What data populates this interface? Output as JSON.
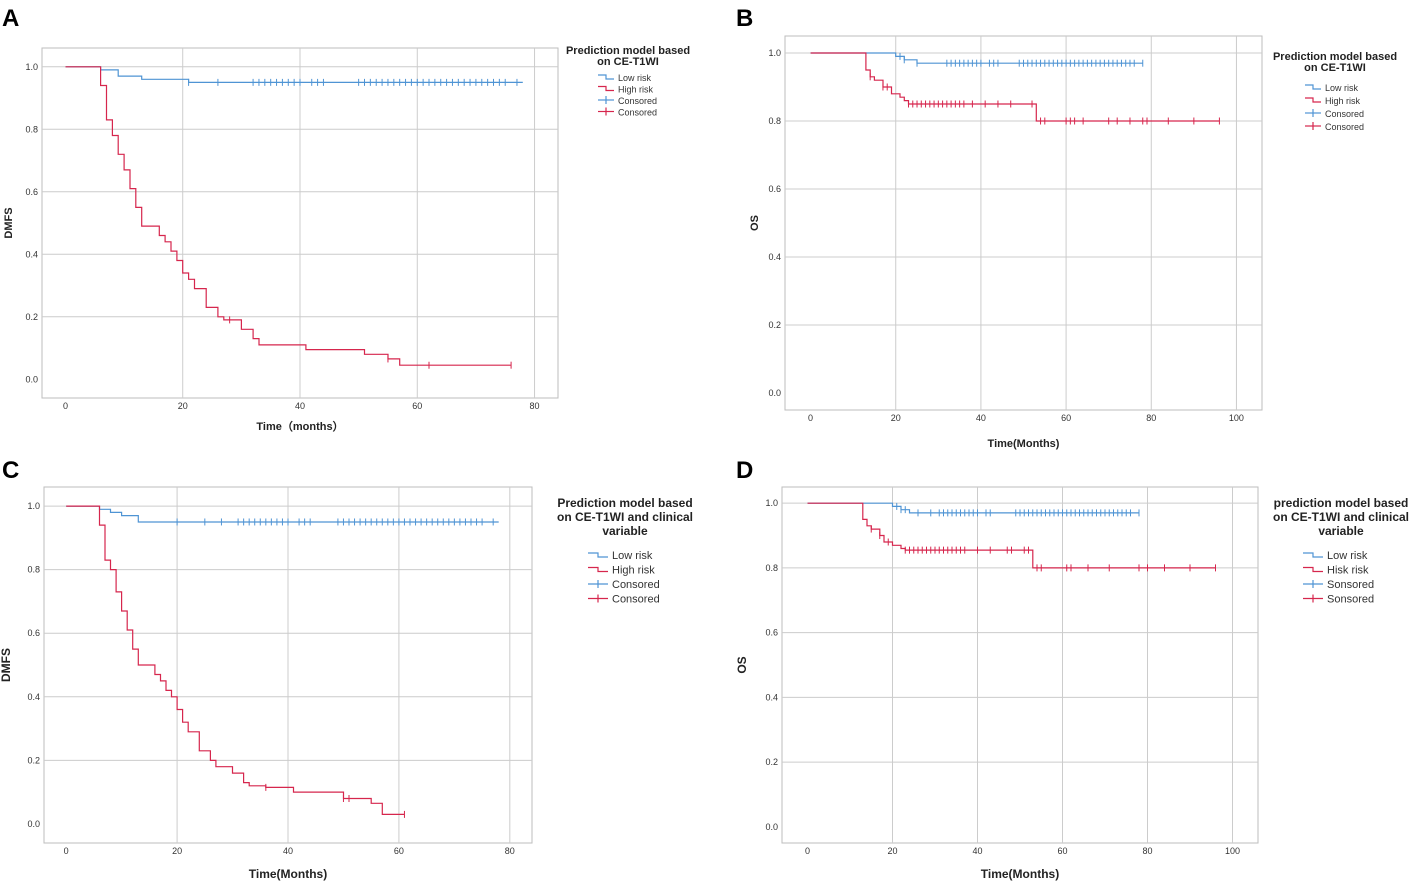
{
  "colors": {
    "low_risk": "#4f94d4",
    "high_risk": "#d6264d",
    "grid": "#cccccc",
    "frame": "#bdbdbd"
  },
  "chart_data": [
    {
      "panel": "A",
      "type": "line",
      "xlabel": "Time（months）",
      "ylabel": "DMFS",
      "xlim": [
        -4,
        84
      ],
      "ylim": [
        -0.06,
        1.06
      ],
      "xticks": [
        "0",
        "20",
        "40",
        "60",
        "80"
      ],
      "yticks": [
        "0.0",
        "0.2",
        "0.4",
        "0.6",
        "0.8",
        "1.0"
      ],
      "legend_title": [
        "Prediction model based",
        "on CE-T1WI"
      ],
      "legend": [
        "Low risk",
        "High risk",
        "Consored",
        "Consored"
      ],
      "series": [
        {
          "name": "Low risk",
          "steps": [
            [
              0,
              1.0
            ],
            [
              6,
              0.99
            ],
            [
              9,
              0.97
            ],
            [
              13,
              0.96
            ],
            [
              21,
              0.95
            ],
            [
              78,
              0.95
            ]
          ],
          "censored": [
            21,
            26,
            32,
            33,
            34,
            35,
            36,
            37,
            38,
            39,
            40,
            42,
            43,
            44,
            50,
            51,
            52,
            53,
            54,
            55,
            56,
            57,
            58,
            59,
            60,
            61,
            62,
            63,
            64,
            65,
            66,
            67,
            68,
            69,
            70,
            71,
            72,
            73,
            74,
            75,
            77
          ]
        },
        {
          "name": "High risk",
          "steps": [
            [
              0,
              1.0
            ],
            [
              6,
              0.94
            ],
            [
              7,
              0.83
            ],
            [
              8,
              0.78
            ],
            [
              9,
              0.72
            ],
            [
              10,
              0.67
            ],
            [
              11,
              0.61
            ],
            [
              12,
              0.55
            ],
            [
              13,
              0.49
            ],
            [
              16,
              0.46
            ],
            [
              17,
              0.44
            ],
            [
              18,
              0.41
            ],
            [
              19,
              0.38
            ],
            [
              20,
              0.34
            ],
            [
              21,
              0.32
            ],
            [
              22,
              0.29
            ],
            [
              24,
              0.23
            ],
            [
              26,
              0.2
            ],
            [
              27,
              0.19
            ],
            [
              30,
              0.16
            ],
            [
              32,
              0.13
            ],
            [
              33,
              0.11
            ],
            [
              41,
              0.095
            ],
            [
              51,
              0.08
            ],
            [
              55,
              0.065
            ],
            [
              57,
              0.045
            ],
            [
              76,
              0.045
            ]
          ],
          "censored": [
            28,
            55,
            62,
            76
          ]
        }
      ]
    },
    {
      "panel": "B",
      "type": "line",
      "xlabel": "Time(Months)",
      "ylabel": "OS",
      "xlim": [
        -6,
        106
      ],
      "ylim": [
        -0.05,
        1.05
      ],
      "xticks": [
        "0",
        "20",
        "40",
        "60",
        "80",
        "100"
      ],
      "yticks": [
        "0.0",
        "0.2",
        "0.4",
        "0.6",
        "0.8",
        "1.0"
      ],
      "legend_title": [
        "Prediction model based",
        "on CE-T1WI"
      ],
      "legend": [
        "Low risk",
        "High risk",
        "Consored",
        "Consored"
      ],
      "series": [
        {
          "name": "Low risk",
          "steps": [
            [
              0,
              1.0
            ],
            [
              20,
              0.99
            ],
            [
              22,
              0.98
            ],
            [
              25,
              0.97
            ],
            [
              78,
              0.97
            ]
          ],
          "censored": [
            21,
            22,
            25,
            32,
            33,
            34,
            35,
            36,
            37,
            38,
            39,
            40,
            42,
            43,
            44,
            49,
            50,
            51,
            52,
            53,
            54,
            55,
            56,
            57,
            58,
            59,
            60,
            61,
            62,
            63,
            64,
            65,
            66,
            67,
            68,
            69,
            70,
            71,
            72,
            73,
            74,
            75,
            76,
            78
          ]
        },
        {
          "name": "High risk",
          "steps": [
            [
              0,
              1.0
            ],
            [
              13,
              0.95
            ],
            [
              14,
              0.93
            ],
            [
              15,
              0.92
            ],
            [
              17,
              0.9
            ],
            [
              19,
              0.88
            ],
            [
              21,
              0.87
            ],
            [
              22,
              0.86
            ],
            [
              23,
              0.85
            ],
            [
              53,
              0.8
            ],
            [
              96,
              0.8
            ]
          ],
          "censored": [
            14,
            17,
            18,
            23,
            24,
            25,
            26,
            27,
            28,
            29,
            30,
            31,
            32,
            33,
            34,
            35,
            36,
            38,
            41,
            44,
            47,
            52,
            54,
            55,
            60,
            61,
            62,
            64,
            70,
            72,
            75,
            78,
            79,
            84,
            90,
            96
          ]
        }
      ]
    },
    {
      "panel": "C",
      "type": "line",
      "xlabel": "Time(Months)",
      "ylabel": "DMFS",
      "xlim": [
        -4,
        84
      ],
      "ylim": [
        -0.06,
        1.06
      ],
      "xticks": [
        "0",
        "20",
        "40",
        "60",
        "80"
      ],
      "yticks": [
        "0.0",
        "0.2",
        "0.4",
        "0.6",
        "0.8",
        "1.0"
      ],
      "legend_title": [
        "Prediction model based",
        "on CE-T1WI and clinical",
        "variable"
      ],
      "legend": [
        "Low risk",
        "High risk",
        "Consored",
        "Consored"
      ],
      "series": [
        {
          "name": "Low risk",
          "steps": [
            [
              0,
              1.0
            ],
            [
              6,
              0.99
            ],
            [
              8,
              0.98
            ],
            [
              10,
              0.97
            ],
            [
              13,
              0.95
            ],
            [
              78,
              0.95
            ]
          ],
          "censored": [
            20,
            25,
            28,
            31,
            32,
            33,
            34,
            35,
            36,
            37,
            38,
            39,
            40,
            42,
            43,
            44,
            49,
            50,
            51,
            52,
            53,
            54,
            55,
            56,
            57,
            58,
            59,
            60,
            61,
            62,
            63,
            64,
            65,
            66,
            67,
            68,
            69,
            70,
            71,
            72,
            73,
            74,
            75,
            77
          ]
        },
        {
          "name": "High risk",
          "steps": [
            [
              0,
              1.0
            ],
            [
              6,
              0.94
            ],
            [
              7,
              0.83
            ],
            [
              8,
              0.8
            ],
            [
              9,
              0.73
            ],
            [
              10,
              0.67
            ],
            [
              11,
              0.61
            ],
            [
              12,
              0.55
            ],
            [
              13,
              0.5
            ],
            [
              16,
              0.47
            ],
            [
              17,
              0.45
            ],
            [
              18,
              0.42
            ],
            [
              19,
              0.4
            ],
            [
              20,
              0.36
            ],
            [
              21,
              0.32
            ],
            [
              22,
              0.29
            ],
            [
              24,
              0.23
            ],
            [
              26,
              0.2
            ],
            [
              27,
              0.18
            ],
            [
              30,
              0.16
            ],
            [
              32,
              0.13
            ],
            [
              33,
              0.12
            ],
            [
              36,
              0.115
            ],
            [
              41,
              0.1
            ],
            [
              50,
              0.08
            ],
            [
              55,
              0.065
            ],
            [
              57,
              0.03
            ],
            [
              61,
              0.03
            ]
          ],
          "censored": [
            36,
            50,
            51,
            61
          ]
        }
      ]
    },
    {
      "panel": "D",
      "type": "line",
      "xlabel": "Time(Months)",
      "ylabel": "OS",
      "xlim": [
        -6,
        106
      ],
      "ylim": [
        -0.05,
        1.05
      ],
      "xticks": [
        "0",
        "20",
        "40",
        "60",
        "80",
        "100"
      ],
      "yticks": [
        "0.0",
        "0.2",
        "0.4",
        "0.6",
        "0.8",
        "1.0"
      ],
      "legend_title": [
        "prediction model based",
        "on CE-T1WI and clinical",
        "variable"
      ],
      "legend": [
        "Low risk",
        "Hisk risk",
        "Sonsored",
        "Sonsored"
      ],
      "series": [
        {
          "name": "Low risk",
          "steps": [
            [
              0,
              1.0
            ],
            [
              20,
              0.99
            ],
            [
              22,
              0.98
            ],
            [
              24,
              0.97
            ],
            [
              78,
              0.97
            ]
          ],
          "censored": [
            21,
            22,
            23,
            26,
            29,
            31,
            32,
            33,
            34,
            35,
            36,
            37,
            38,
            39,
            40,
            42,
            43,
            49,
            50,
            51,
            52,
            53,
            54,
            55,
            56,
            57,
            58,
            59,
            60,
            61,
            62,
            63,
            64,
            65,
            66,
            67,
            68,
            69,
            70,
            71,
            72,
            73,
            74,
            75,
            76,
            78
          ]
        },
        {
          "name": "High risk",
          "steps": [
            [
              0,
              1.0
            ],
            [
              13,
              0.95
            ],
            [
              14,
              0.93
            ],
            [
              15,
              0.92
            ],
            [
              17,
              0.9
            ],
            [
              18,
              0.88
            ],
            [
              20,
              0.87
            ],
            [
              22,
              0.86
            ],
            [
              23,
              0.855
            ],
            [
              53,
              0.8
            ],
            [
              96,
              0.8
            ]
          ],
          "censored": [
            15,
            17,
            19,
            23,
            24,
            25,
            26,
            27,
            28,
            29,
            30,
            31,
            32,
            33,
            34,
            35,
            36,
            37,
            40,
            43,
            47,
            48,
            51,
            52,
            54,
            55,
            61,
            62,
            66,
            71,
            78,
            80,
            84,
            90,
            96
          ]
        }
      ]
    }
  ]
}
